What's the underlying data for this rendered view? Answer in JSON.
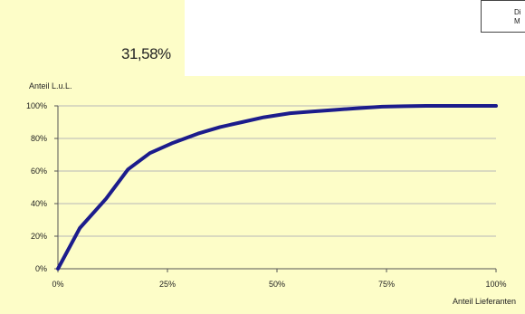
{
  "summary_percent": "31,58%",
  "legend_fragment": "Di\nM",
  "colors": {
    "background_panel": "#fdfdc8",
    "line": "#1c1c8c",
    "grid": "#b8b8b8",
    "axis": "#555555"
  },
  "chart_data": {
    "type": "line",
    "title": "",
    "ylabel": "Anteil L.u.L.",
    "xlabel": "Anteil Lieferanten",
    "x_ticks": [
      "0%",
      "25%",
      "50%",
      "75%",
      "100%"
    ],
    "y_ticks": [
      "0%",
      "20%",
      "40%",
      "60%",
      "80%",
      "100%"
    ],
    "xlim": [
      0,
      100
    ],
    "ylim": [
      0,
      100
    ],
    "grid": "horizontal",
    "series": [
      {
        "x": [
          0,
          5,
          11,
          16,
          21,
          26,
          32,
          37,
          42,
          47,
          53,
          58,
          63,
          68,
          74,
          79,
          84,
          89,
          95,
          100
        ],
        "y": [
          0,
          25,
          43,
          61,
          71,
          77,
          83,
          87,
          90,
          93,
          95.5,
          96.5,
          97.5,
          98.5,
          99.5,
          99.8,
          100,
          100,
          100,
          100
        ]
      }
    ]
  }
}
